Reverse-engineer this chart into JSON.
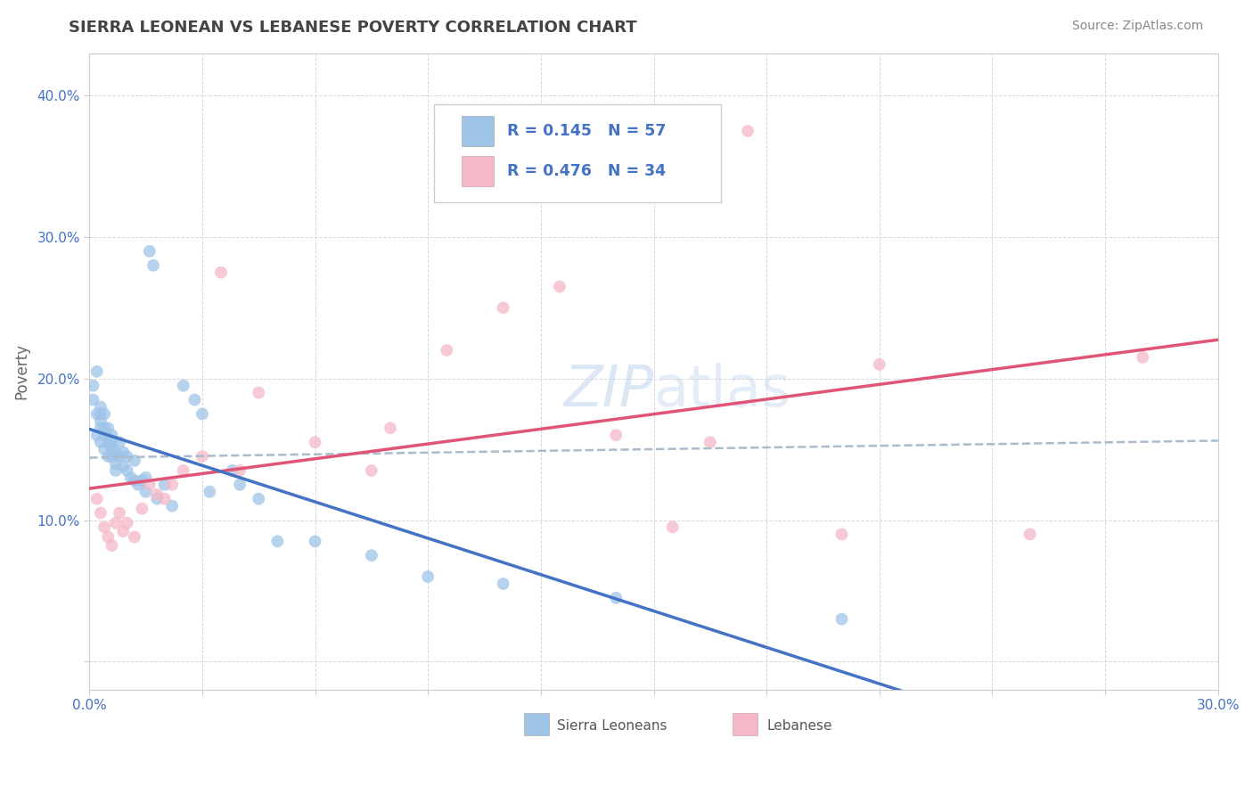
{
  "title": "SIERRA LEONEAN VS LEBANESE POVERTY CORRELATION CHART",
  "source": "Source: ZipAtlas.com",
  "ylabel": "Poverty",
  "xlim": [
    0.0,
    0.3
  ],
  "ylim": [
    -0.02,
    0.43
  ],
  "ytick_vals": [
    0.0,
    0.1,
    0.2,
    0.3,
    0.4
  ],
  "xtick_vals": [
    0.0,
    0.03,
    0.06,
    0.09,
    0.12,
    0.15,
    0.18,
    0.21,
    0.24,
    0.27,
    0.3
  ],
  "sierra_color": "#9ec4e8",
  "lebanese_color": "#f4b8c8",
  "sierra_R": 0.145,
  "sierra_N": 57,
  "lebanese_R": 0.476,
  "lebanese_N": 34,
  "trend_color_sierra": "#4472c4",
  "trend_color_lebanese": "#e05575",
  "trend_color_dashed": "#aabbcc",
  "watermark_color": "#c5d8ef",
  "background_color": "#ffffff",
  "grid_color": "#d8d8d8",
  "legend_text_color": "#4472c4",
  "axis_label_color": "#4472c4",
  "sierra_x": [
    0.001,
    0.001,
    0.002,
    0.002,
    0.002,
    0.003,
    0.003,
    0.003,
    0.003,
    0.003,
    0.004,
    0.004,
    0.004,
    0.004,
    0.005,
    0.005,
    0.005,
    0.005,
    0.006,
    0.006,
    0.006,
    0.006,
    0.007,
    0.007,
    0.007,
    0.008,
    0.008,
    0.009,
    0.009,
    0.01,
    0.01,
    0.011,
    0.012,
    0.012,
    0.013,
    0.014,
    0.015,
    0.015,
    0.016,
    0.017,
    0.018,
    0.02,
    0.022,
    0.025,
    0.028,
    0.03,
    0.032,
    0.038,
    0.04,
    0.045,
    0.05,
    0.06,
    0.075,
    0.09,
    0.11,
    0.14,
    0.2
  ],
  "sierra_y": [
    0.185,
    0.195,
    0.175,
    0.16,
    0.205,
    0.17,
    0.18,
    0.165,
    0.155,
    0.175,
    0.15,
    0.16,
    0.175,
    0.165,
    0.155,
    0.145,
    0.165,
    0.158,
    0.15,
    0.145,
    0.16,
    0.155,
    0.14,
    0.148,
    0.135,
    0.145,
    0.155,
    0.138,
    0.148,
    0.135,
    0.145,
    0.13,
    0.128,
    0.142,
    0.125,
    0.128,
    0.12,
    0.13,
    0.29,
    0.28,
    0.115,
    0.125,
    0.11,
    0.195,
    0.185,
    0.175,
    0.12,
    0.135,
    0.125,
    0.115,
    0.085,
    0.085,
    0.075,
    0.06,
    0.055,
    0.045,
    0.03
  ],
  "lebanese_x": [
    0.002,
    0.003,
    0.004,
    0.005,
    0.006,
    0.007,
    0.008,
    0.009,
    0.01,
    0.012,
    0.014,
    0.016,
    0.018,
    0.02,
    0.022,
    0.025,
    0.03,
    0.035,
    0.04,
    0.045,
    0.06,
    0.075,
    0.08,
    0.095,
    0.11,
    0.125,
    0.14,
    0.155,
    0.165,
    0.175,
    0.2,
    0.21,
    0.25,
    0.28
  ],
  "lebanese_y": [
    0.115,
    0.105,
    0.095,
    0.088,
    0.082,
    0.098,
    0.105,
    0.092,
    0.098,
    0.088,
    0.108,
    0.125,
    0.118,
    0.115,
    0.125,
    0.135,
    0.145,
    0.275,
    0.135,
    0.19,
    0.155,
    0.135,
    0.165,
    0.22,
    0.25,
    0.265,
    0.16,
    0.095,
    0.155,
    0.375,
    0.09,
    0.21,
    0.09,
    0.215
  ]
}
